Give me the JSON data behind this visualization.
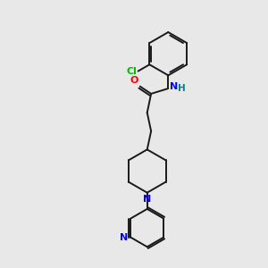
{
  "background_color": "#e8e8e8",
  "bond_color": "#1a1a1a",
  "atom_colors": {
    "Cl": "#00bb00",
    "O": "#ff0000",
    "N_blue": "#0000ff",
    "H": "#008080"
  },
  "figsize": [
    3.0,
    3.0
  ],
  "dpi": 100,
  "xlim": [
    0,
    10
  ],
  "ylim": [
    0,
    10
  ]
}
